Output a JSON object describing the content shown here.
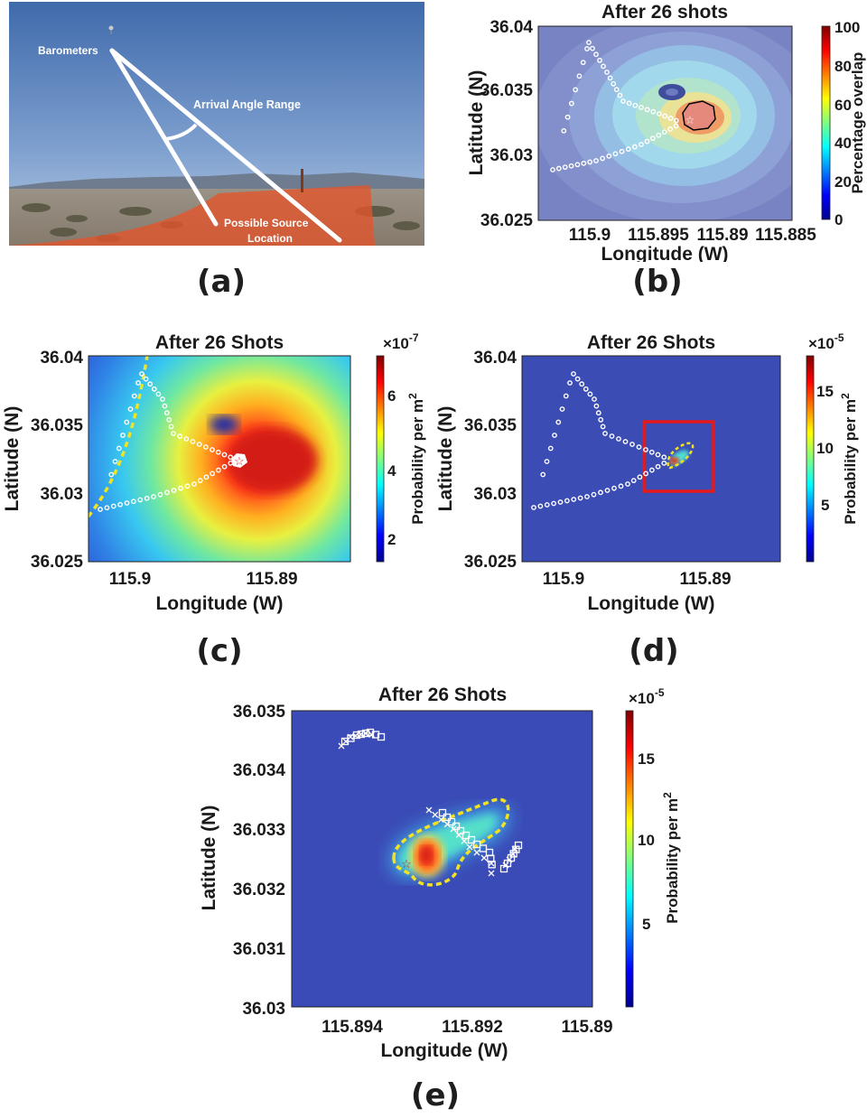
{
  "figure": {
    "panel_letters": [
      "(a)",
      "(b)",
      "(c)",
      "(d)",
      "(e)"
    ]
  },
  "photo": {
    "labels": {
      "barometers": "Barometers",
      "arrival_angle": "Arrival Angle Range",
      "source_line1": "Possible Source",
      "source_line2": "Location"
    }
  },
  "panel_b": {
    "title": "After 26 shots",
    "xlabel": "Longitude (W)",
    "ylabel": "Latitude (N)",
    "xticks": [
      "115.9",
      "115.895",
      "115.89",
      "115.885"
    ],
    "yticks": [
      "36.04",
      "36.035",
      "36.03",
      "36.025"
    ],
    "colorbar_label": "Percentage overlap",
    "colorbar_ticks": [
      "100",
      "80",
      "60",
      "40",
      "20",
      "0"
    ]
  },
  "panel_c": {
    "title": "After 26 Shots",
    "xlabel": "Longitude (W)",
    "ylabel": "Latitude (N)",
    "xticks": [
      "115.9",
      "115.89"
    ],
    "yticks": [
      "36.04",
      "36.035",
      "36.03",
      "36.025"
    ],
    "colorbar_exp": "×10",
    "colorbar_exp_power": "-7",
    "colorbar_label": "Probability per m",
    "colorbar_label_sup": "2",
    "colorbar_ticks": [
      "6",
      "4",
      "2"
    ]
  },
  "panel_d": {
    "title": "After 26 Shots",
    "xlabel": "Longitude (W)",
    "ylabel": "Latitude (N)",
    "xticks": [
      "115.9",
      "115.89"
    ],
    "yticks": [
      "36.04",
      "36.035",
      "36.03",
      "36.025"
    ],
    "colorbar_exp": "×10",
    "colorbar_exp_power": "-5",
    "colorbar_label": "Probability per m",
    "colorbar_label_sup": "2",
    "colorbar_ticks": [
      "15",
      "10",
      "5"
    ]
  },
  "panel_e": {
    "title": "After 26 Shots",
    "xlabel": "Longitude (W)",
    "ylabel": "Latitude (N)",
    "xticks": [
      "115.894",
      "115.892",
      "115.89"
    ],
    "yticks": [
      "36.035",
      "36.034",
      "36.033",
      "36.032",
      "36.031",
      "36.03"
    ],
    "colorbar_exp": "×10",
    "colorbar_exp_power": "-5",
    "colorbar_label": "Probability per m",
    "colorbar_label_sup": "2",
    "colorbar_ticks": [
      "15",
      "10",
      "5"
    ]
  },
  "chart_data": [
    {
      "type": "heatmap",
      "title": "After 26 shots",
      "xlabel": "Longitude (W)",
      "ylabel": "Latitude (N)",
      "xlim": [
        115.9035,
        115.885
      ],
      "ylim": [
        36.025,
        36.04
      ],
      "colorbar": {
        "label": "Percentage overlap",
        "range": [
          0,
          100
        ],
        "colormap": "jet"
      },
      "peak": {
        "lon": 115.8928,
        "lat": 36.0325,
        "value": 100
      },
      "source_star": {
        "lon": 115.8932,
        "lat": 36.0323
      }
    },
    {
      "type": "heatmap",
      "title": "After 26 Shots",
      "xlabel": "Longitude (W)",
      "ylabel": "Latitude (N)",
      "xlim": [
        115.9035,
        115.8855
      ],
      "ylim": [
        36.025,
        36.04
      ],
      "colorbar": {
        "label": "Probability per m^2",
        "scale": "1e-7",
        "range": [
          1,
          7.5
        ],
        "colormap": "jet"
      },
      "peak": {
        "lon": 115.8915,
        "lat": 36.0322,
        "value": 7.3
      },
      "source_star": {
        "lon": 115.8929,
        "lat": 36.0323
      }
    },
    {
      "type": "heatmap",
      "title": "After 26 Shots",
      "xlabel": "Longitude (W)",
      "ylabel": "Latitude (N)",
      "xlim": [
        115.9035,
        115.8855
      ],
      "ylim": [
        36.025,
        36.04
      ],
      "colorbar": {
        "label": "Probability per m^2",
        "scale": "1e-5",
        "range": [
          0,
          17.5
        ],
        "colormap": "jet"
      },
      "zoom_box": {
        "lon": [
          115.894,
          115.89
        ],
        "lat": [
          36.03,
          36.035
        ]
      },
      "source_star": {
        "lon": 115.8929,
        "lat": 36.0323
      }
    },
    {
      "type": "heatmap",
      "title": "After 26 Shots",
      "xlabel": "Longitude (W)",
      "ylabel": "Latitude (N)",
      "xlim": [
        115.895,
        115.89
      ],
      "ylim": [
        36.03,
        36.035
      ],
      "colorbar": {
        "label": "Probability per m^2",
        "scale": "1e-5",
        "range": [
          0,
          17.5
        ],
        "colormap": "jet"
      },
      "peak": {
        "lon": 115.8927,
        "lat": 36.03245,
        "value": 17
      },
      "source_star": {
        "lon": 115.8931,
        "lat": 36.03243
      }
    }
  ]
}
